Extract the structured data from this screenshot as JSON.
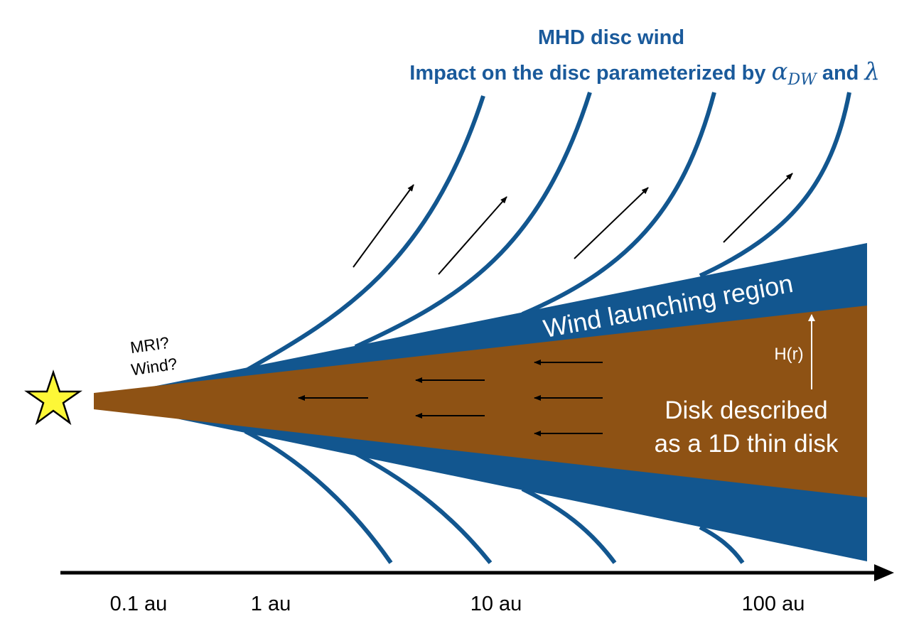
{
  "title": {
    "line1": "MHD disc wind",
    "line2_prefix": "Impact on the disc parameterized by ",
    "alpha": "α",
    "alpha_sub": "DW",
    "and": " and ",
    "lambda": "λ"
  },
  "labels": {
    "mri": "MRI?",
    "wind": "Wind?",
    "wind_launching_region": "Wind launching region",
    "scale_height": "H(r)",
    "disk_line1": "Disk described",
    "disk_line2": "as a 1D thin disk"
  },
  "axis": {
    "ticks": [
      "0.1 au",
      "1 au",
      "10 au",
      "100 au"
    ]
  },
  "colors": {
    "wind_blue": "#12568f",
    "disk_brown": "#8e5214",
    "star_yellow": "#fdf737"
  }
}
